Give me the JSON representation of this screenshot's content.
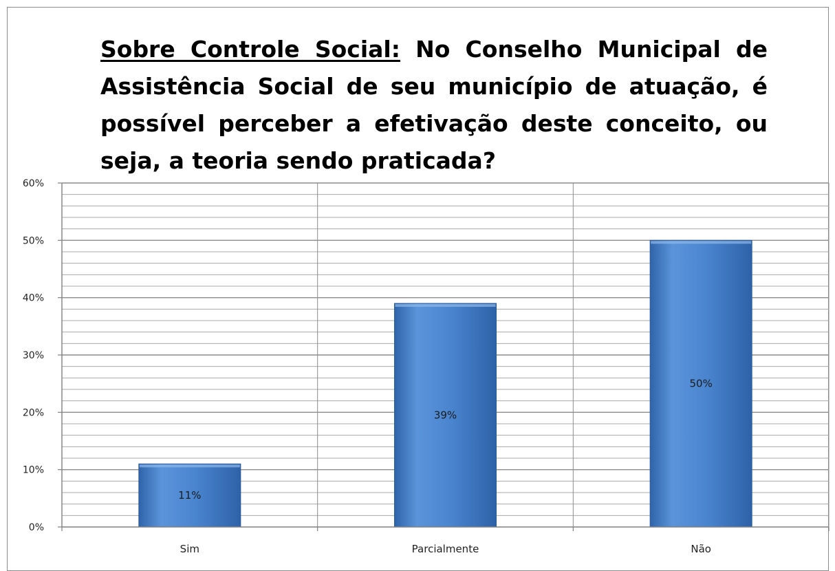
{
  "chart_data": {
    "type": "bar",
    "title_lead": "Sobre Controle Social:",
    "title_rest": " No Conselho Municipal de Assistência Social de seu município de atuação, é possível perceber a efetivação deste conceito, ou seja, a teoria sendo praticada?",
    "categories": [
      "Sim",
      "Parcialmente",
      "Não"
    ],
    "values": [
      11,
      39,
      50
    ],
    "data_labels": [
      "11%",
      "39%",
      "50%"
    ],
    "y_ticks": [
      "0%",
      "10%",
      "20%",
      "30%",
      "40%",
      "50%",
      "60%"
    ],
    "ylim": [
      0,
      60
    ],
    "y_major_step": 10,
    "y_minor_step": 2,
    "grid": true,
    "legend": "none",
    "colors": {
      "bar": "#4a85cf",
      "bar_light": "#6fa2e0",
      "bar_dark": "#2e62a8",
      "grid": "#8c8c8c",
      "axis": "#808080",
      "text": "#222222"
    }
  }
}
